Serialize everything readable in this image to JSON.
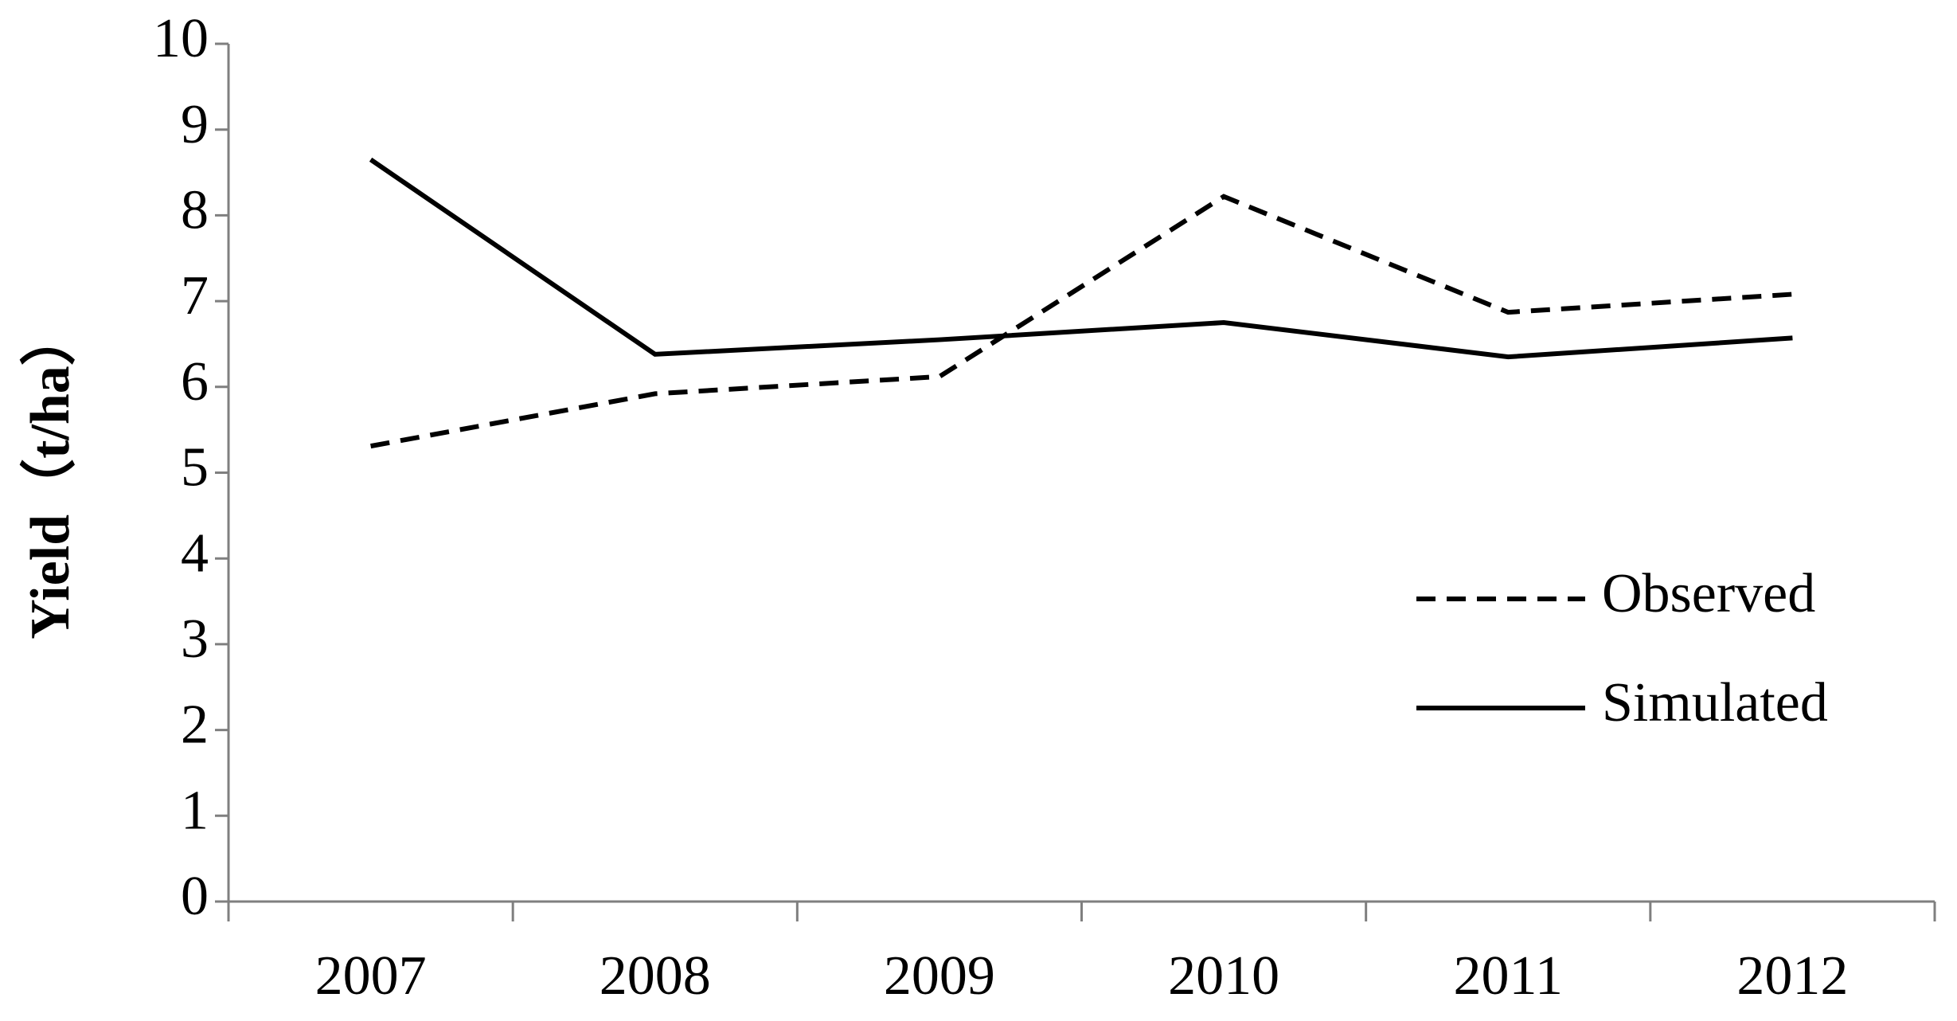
{
  "chart_data": {
    "type": "line",
    "y_label": "Yield（t/ha）",
    "categories": [
      "2007",
      "2008",
      "2009",
      "2010",
      "2011",
      "2012"
    ],
    "series": [
      {
        "name": "Observed",
        "color": "#000000",
        "dash": true,
        "values": [
          5.31,
          5.92,
          6.12,
          8.22,
          6.87,
          7.08
        ]
      },
      {
        "name": "Simulated",
        "color": "#000000",
        "dash": false,
        "values": [
          8.65,
          6.38,
          6.55,
          6.75,
          6.35,
          6.57
        ]
      }
    ],
    "ylim": [
      0,
      10
    ],
    "yticks": [
      0,
      1,
      2,
      3,
      4,
      5,
      6,
      7,
      8,
      9,
      10
    ],
    "grid": false
  }
}
